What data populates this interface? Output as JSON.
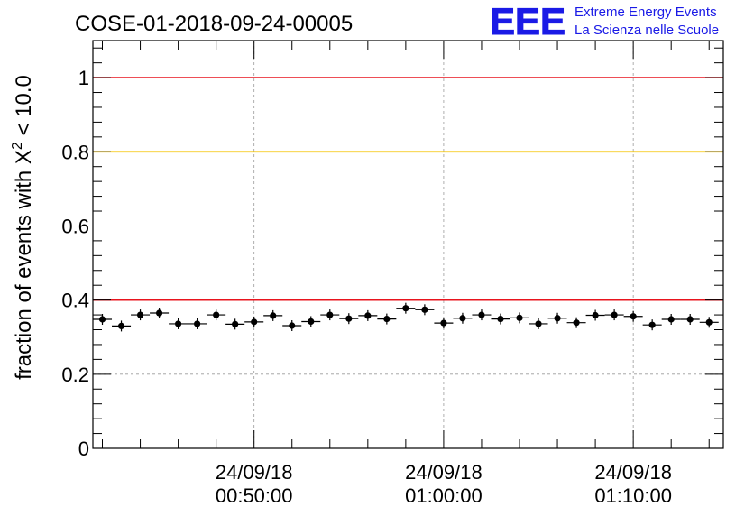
{
  "chart_data": {
    "type": "scatter",
    "title": "COSE-01-2018-09-24-00005",
    "ylabel_prefix": "fraction of events with ",
    "ylabel_symbol": "X",
    "ylabel_superscript": "2",
    "ylabel_suffix": " < 10.0",
    "xlabel": "",
    "ylim": [
      0,
      1.1
    ],
    "y_ticks": [
      0,
      0.2,
      0.4,
      0.6,
      0.8,
      1
    ],
    "y_tick_labels": [
      "0",
      "0.2",
      "0.4",
      "0.6",
      "0.8",
      "1"
    ],
    "x_range_minutes": [
      41.5,
      74.75
    ],
    "x_ticks_minutes": [
      50,
      60,
      70
    ],
    "x_tick_labels": [
      {
        "date": "24/09/18",
        "time": "00:50:00"
      },
      {
        "date": "24/09/18",
        "time": "01:00:00"
      },
      {
        "date": "24/09/18",
        "time": "01:10:00"
      }
    ],
    "grid": true,
    "bin_width_minutes": 1,
    "x_minutes": [
      42,
      43,
      44,
      45,
      46,
      47,
      48,
      49,
      50,
      51,
      52,
      53,
      54,
      55,
      56,
      57,
      58,
      59,
      60,
      61,
      62,
      63,
      64,
      65,
      66,
      67,
      68,
      69,
      70,
      71,
      72,
      73,
      74
    ],
    "values": [
      0.348,
      0.33,
      0.36,
      0.365,
      0.336,
      0.336,
      0.36,
      0.335,
      0.341,
      0.358,
      0.331,
      0.342,
      0.36,
      0.35,
      0.358,
      0.349,
      0.378,
      0.374,
      0.338,
      0.351,
      0.36,
      0.349,
      0.352,
      0.336,
      0.351,
      0.339,
      0.359,
      0.36,
      0.356,
      0.333,
      0.348,
      0.348,
      0.34
    ],
    "reference_lines": [
      {
        "value": 1.0,
        "color": "#e8141e"
      },
      {
        "value": 0.8,
        "color": "#f5c400"
      },
      {
        "value": 0.4,
        "color": "#e8141e"
      }
    ]
  },
  "logo": {
    "mark": "EEE",
    "line1": "Extreme Energy Events",
    "line2": "La Scienza nelle Scuole",
    "color": "#1a1ae6"
  }
}
